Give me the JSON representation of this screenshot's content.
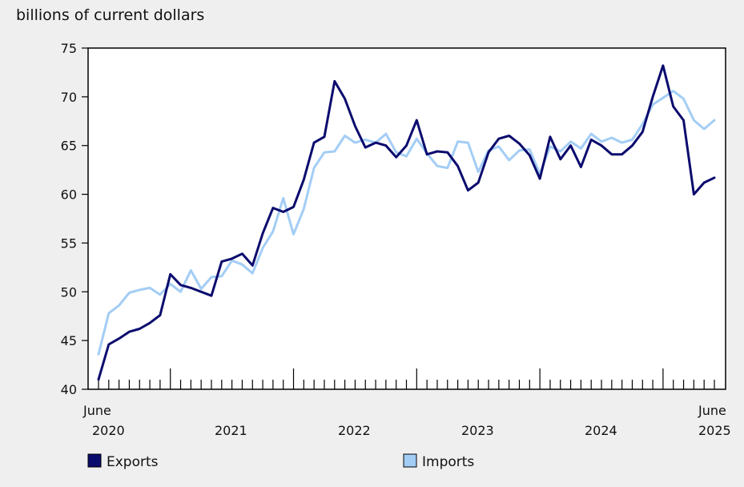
{
  "chart_data": {
    "type": "line",
    "ylabel": "billions of current dollars",
    "ylim": [
      40,
      75
    ],
    "yticks": [
      40,
      45,
      50,
      55,
      60,
      65,
      70,
      75
    ],
    "x_start_month": "June",
    "x_start_year": "2020",
    "x_end_month": "June",
    "x_end_year": "2025",
    "year_labels": [
      "2021",
      "2022",
      "2023",
      "2024"
    ],
    "grid": false,
    "legend_position": "bottom",
    "series": [
      {
        "name": "Exports",
        "color": "#0b0b6e",
        "values": [
          41.0,
          44.6,
          45.2,
          45.9,
          46.2,
          46.8,
          47.6,
          51.8,
          50.7,
          50.4,
          50.0,
          49.6,
          53.1,
          53.4,
          53.9,
          52.7,
          56.0,
          58.6,
          58.2,
          58.7,
          61.5,
          65.3,
          65.9,
          71.6,
          69.8,
          67.0,
          64.8,
          65.3,
          65.0,
          63.8,
          65.0,
          67.6,
          64.1,
          64.4,
          64.3,
          62.9,
          60.4,
          61.2,
          64.3,
          65.7,
          66.0,
          65.2,
          64.0,
          61.6,
          65.9,
          63.6,
          65.0,
          62.8,
          65.6,
          65.0,
          64.1,
          64.1,
          65.0,
          66.4,
          70.0,
          73.2,
          69.0,
          67.6,
          60.0,
          61.2,
          61.7
        ]
      },
      {
        "name": "Imports",
        "color": "#a3cdf5",
        "values": [
          43.6,
          47.8,
          48.6,
          49.9,
          50.2,
          50.4,
          49.7,
          50.8,
          50.0,
          52.2,
          50.3,
          51.5,
          51.6,
          53.2,
          52.8,
          51.9,
          54.5,
          56.2,
          59.6,
          55.9,
          58.5,
          62.7,
          64.3,
          64.4,
          66.0,
          65.3,
          65.6,
          65.3,
          66.2,
          64.3,
          63.9,
          65.7,
          64.2,
          62.9,
          62.7,
          65.4,
          65.3,
          62.3,
          64.5,
          64.9,
          63.5,
          64.5,
          64.6,
          62.1,
          64.9,
          64.4,
          65.4,
          64.7,
          66.2,
          65.4,
          65.8,
          65.3,
          65.6,
          67.2,
          69.2,
          69.9,
          70.6,
          69.8,
          67.6,
          66.7,
          67.6
        ]
      }
    ]
  }
}
